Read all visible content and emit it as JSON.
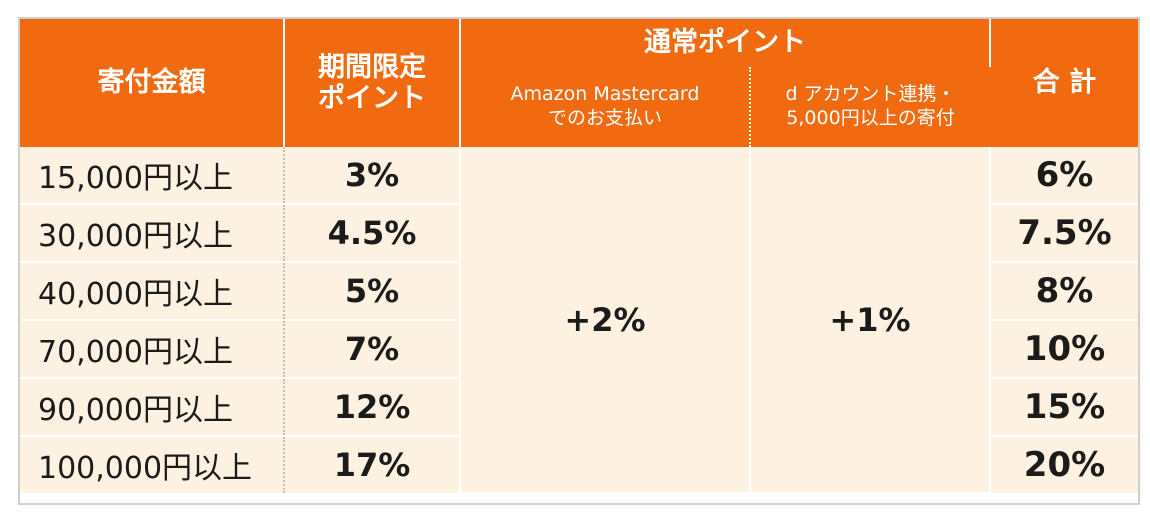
{
  "header": {
    "amount": "寄付金額",
    "limited_line1": "期間限定",
    "limited_line2": "ポイント",
    "normal": "通常ポイント",
    "amazon_line1": "Amazon Mastercard",
    "amazon_line2": "でのお支払い",
    "daccount_line1": "d アカウント連携・",
    "daccount_line2": "5,000円以上の寄付",
    "total": "合 計"
  },
  "rows": [
    {
      "amount": "15,000円以上",
      "limited": "3%",
      "total": "6%"
    },
    {
      "amount": "30,000円以上",
      "limited": "4.5%",
      "total": "7.5%"
    },
    {
      "amount": "40,000円以上",
      "limited": "5%",
      "total": "8%"
    },
    {
      "amount": "70,000円以上",
      "limited": "7%",
      "total": "10%"
    },
    {
      "amount": "90,000円以上",
      "limited": "12%",
      "total": "15%"
    },
    {
      "amount": "100,000円以上",
      "limited": "17%",
      "total": "20%"
    }
  ],
  "amazon_bonus": "+2%",
  "daccount_bonus": "+1%",
  "colors": {
    "header_bg": "#f26a0f",
    "body_bg": "#fdf2e2",
    "text": "#1b1b1b"
  }
}
